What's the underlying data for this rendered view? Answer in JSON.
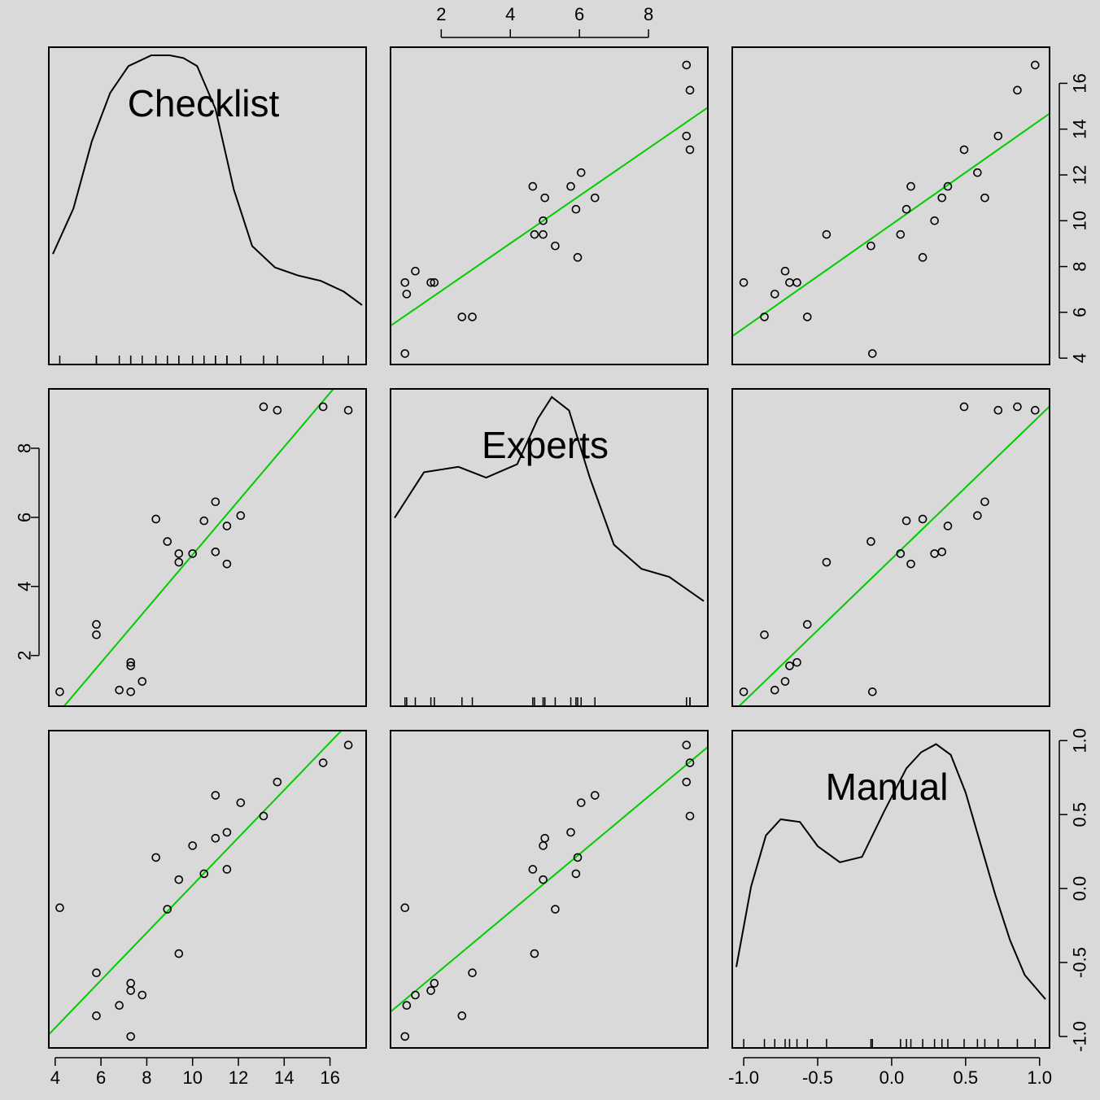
{
  "chart_data": {
    "type": "scatter",
    "title": "",
    "variables": [
      "Checklist",
      "Experts",
      "Manual"
    ],
    "diagonal": "density",
    "fit_line": "regression",
    "grid": false,
    "axis_ranges": {
      "Checklist": [
        3.9,
        17.4
      ],
      "Experts": [
        0.65,
        9.6
      ],
      "Manual": [
        -1.05,
        1.04
      ]
    },
    "ticks": {
      "Checklist": [
        4,
        6,
        8,
        10,
        12,
        14,
        16
      ],
      "Experts": [
        2,
        4,
        6,
        8
      ],
      "Manual": [
        -1.0,
        -0.5,
        0.0,
        0.5,
        1.0
      ]
    },
    "tick_labels": {
      "Checklist": [
        "4",
        "6",
        "8",
        "10",
        "12",
        "14",
        "16"
      ],
      "Experts": [
        "2",
        "4",
        "6",
        "8"
      ],
      "Manual": [
        "-1.0",
        "-0.5",
        "0.0",
        "0.5",
        "1.0"
      ]
    },
    "points": [
      {
        "Checklist": 4.2,
        "Experts": 0.95,
        "Manual": -0.13
      },
      {
        "Checklist": 5.8,
        "Experts": 2.9,
        "Manual": -0.57
      },
      {
        "Checklist": 5.8,
        "Experts": 2.6,
        "Manual": -0.86
      },
      {
        "Checklist": 6.8,
        "Experts": 1.0,
        "Manual": -0.79
      },
      {
        "Checklist": 7.3,
        "Experts": 1.7,
        "Manual": -0.69
      },
      {
        "Checklist": 7.3,
        "Experts": 1.8,
        "Manual": -0.64
      },
      {
        "Checklist": 7.3,
        "Experts": 0.95,
        "Manual": -1.0
      },
      {
        "Checklist": 7.8,
        "Experts": 1.25,
        "Manual": -0.72
      },
      {
        "Checklist": 8.4,
        "Experts": 5.95,
        "Manual": 0.21
      },
      {
        "Checklist": 8.9,
        "Experts": 5.3,
        "Manual": -0.14
      },
      {
        "Checklist": 9.4,
        "Experts": 4.95,
        "Manual": 0.06
      },
      {
        "Checklist": 9.4,
        "Experts": 4.7,
        "Manual": -0.44
      },
      {
        "Checklist": 10.0,
        "Experts": 4.95,
        "Manual": 0.29
      },
      {
        "Checklist": 10.5,
        "Experts": 5.9,
        "Manual": 0.1
      },
      {
        "Checklist": 11.0,
        "Experts": 6.45,
        "Manual": 0.63
      },
      {
        "Checklist": 11.0,
        "Experts": 5.0,
        "Manual": 0.34
      },
      {
        "Checklist": 11.5,
        "Experts": 4.65,
        "Manual": 0.13
      },
      {
        "Checklist": 11.5,
        "Experts": 5.75,
        "Manual": 0.38
      },
      {
        "Checklist": 12.1,
        "Experts": 6.05,
        "Manual": 0.58
      },
      {
        "Checklist": 13.1,
        "Experts": 9.2,
        "Manual": 0.49
      },
      {
        "Checklist": 13.7,
        "Experts": 9.1,
        "Manual": 0.72
      },
      {
        "Checklist": 15.7,
        "Experts": 9.2,
        "Manual": 0.85
      },
      {
        "Checklist": 16.8,
        "Experts": 9.1,
        "Manual": 0.97
      }
    ],
    "density": {
      "Checklist": [
        [
          3.9,
          0.26
        ],
        [
          4.8,
          0.43
        ],
        [
          5.6,
          0.68
        ],
        [
          6.4,
          0.86
        ],
        [
          7.2,
          0.96
        ],
        [
          8.2,
          1.0
        ],
        [
          9.0,
          1.0
        ],
        [
          9.6,
          0.99
        ],
        [
          10.2,
          0.96
        ],
        [
          11.0,
          0.8
        ],
        [
          11.8,
          0.5
        ],
        [
          12.6,
          0.29
        ],
        [
          13.6,
          0.21
        ],
        [
          14.6,
          0.18
        ],
        [
          15.6,
          0.16
        ],
        [
          16.6,
          0.12
        ],
        [
          17.4,
          0.07
        ]
      ],
      "Experts": [
        [
          0.65,
          0.55
        ],
        [
          1.5,
          0.72
        ],
        [
          2.5,
          0.74
        ],
        [
          3.3,
          0.7
        ],
        [
          4.2,
          0.75
        ],
        [
          4.8,
          0.92
        ],
        [
          5.2,
          1.0
        ],
        [
          5.7,
          0.95
        ],
        [
          6.3,
          0.7
        ],
        [
          7.0,
          0.45
        ],
        [
          7.8,
          0.36
        ],
        [
          8.6,
          0.33
        ],
        [
          9.6,
          0.24
        ]
      ],
      "Manual": [
        [
          -1.05,
          0.15
        ],
        [
          -0.95,
          0.45
        ],
        [
          -0.85,
          0.64
        ],
        [
          -0.75,
          0.7
        ],
        [
          -0.62,
          0.69
        ],
        [
          -0.5,
          0.6
        ],
        [
          -0.35,
          0.54
        ],
        [
          -0.2,
          0.56
        ],
        [
          -0.05,
          0.73
        ],
        [
          0.1,
          0.89
        ],
        [
          0.2,
          0.95
        ],
        [
          0.3,
          0.98
        ],
        [
          0.4,
          0.94
        ],
        [
          0.5,
          0.8
        ],
        [
          0.6,
          0.61
        ],
        [
          0.7,
          0.42
        ],
        [
          0.8,
          0.25
        ],
        [
          0.9,
          0.12
        ],
        [
          1.04,
          0.03
        ]
      ]
    }
  }
}
